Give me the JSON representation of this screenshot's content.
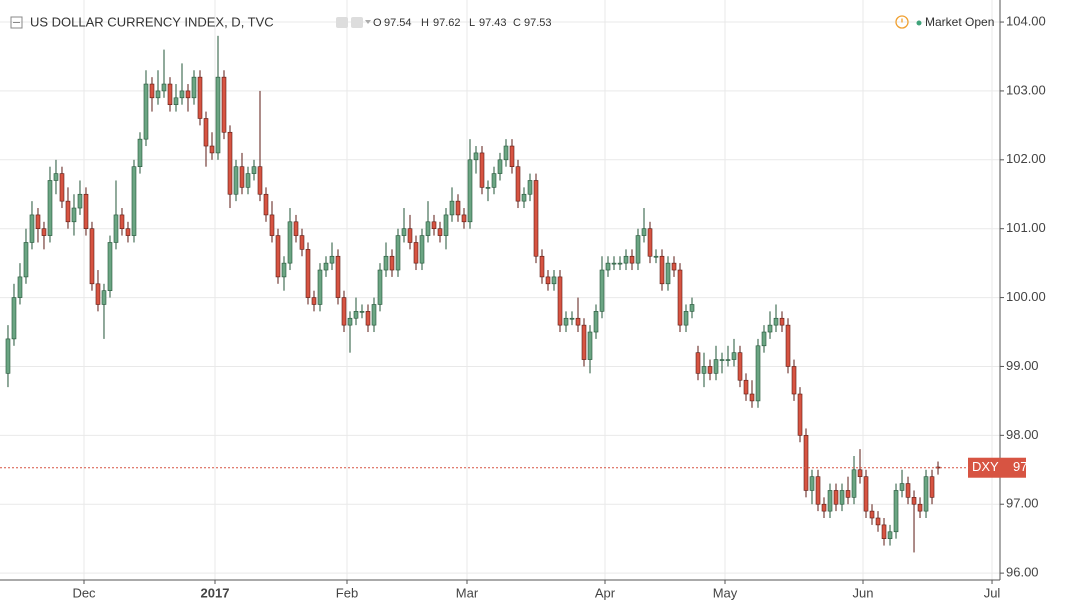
{
  "chart_data": {
    "type": "candlestick",
    "title": "US DOLLAR CURRENCY INDEX, D, TVC",
    "ohlc_labels": [
      "O",
      "H",
      "L",
      "C"
    ],
    "status": "Market Open",
    "symbol": "DXY",
    "up_color": "#6ba583",
    "down_color": "#d75442",
    "grid": true,
    "ylim": [
      95.9,
      104.32
    ],
    "yticks": [
      {
        "value": 96,
        "label": "96.00"
      },
      {
        "value": 97,
        "label": "97.00"
      },
      {
        "value": 98,
        "label": "98.00"
      },
      {
        "value": 99,
        "label": "99.00"
      },
      {
        "value": 100,
        "label": "100.00"
      },
      {
        "value": 101,
        "label": "101.00"
      },
      {
        "value": 102,
        "label": "102.00"
      },
      {
        "value": 103,
        "label": "103.00"
      },
      {
        "value": 104,
        "label": "104.00"
      }
    ],
    "xlim": [
      -1.33,
      165.33
    ],
    "xticks": [
      {
        "value": 12.67,
        "label": "Dec"
      },
      {
        "value": 34.5,
        "label": "2017"
      },
      {
        "value": 56.5,
        "label": "Feb"
      },
      {
        "value": 76.5,
        "label": "Mar"
      },
      {
        "value": 99.5,
        "label": "Apr"
      },
      {
        "value": 119.5,
        "label": "May"
      },
      {
        "value": 142.5,
        "label": "Jun"
      },
      {
        "value": 164,
        "label": "Jul"
      }
    ],
    "candles": [
      [
        98.9,
        99.6,
        98.7,
        99.4
      ],
      [
        99.4,
        100.2,
        99.3,
        100.0
      ],
      [
        100.0,
        100.5,
        99.9,
        100.3
      ],
      [
        100.3,
        101.0,
        100.2,
        100.8
      ],
      [
        100.8,
        101.4,
        100.7,
        101.2
      ],
      [
        101.2,
        101.3,
        100.8,
        101.0
      ],
      [
        101.0,
        101.1,
        100.7,
        100.9
      ],
      [
        100.9,
        101.9,
        100.8,
        101.7
      ],
      [
        101.7,
        102.0,
        101.5,
        101.8
      ],
      [
        101.8,
        101.9,
        101.3,
        101.4
      ],
      [
        101.4,
        101.6,
        101.0,
        101.1
      ],
      [
        101.1,
        101.5,
        100.9,
        101.3
      ],
      [
        101.3,
        101.7,
        101.2,
        101.5
      ],
      [
        101.5,
        101.6,
        100.9,
        101.0
      ],
      [
        101.0,
        101.1,
        100.1,
        100.2
      ],
      [
        100.2,
        100.4,
        99.8,
        99.9
      ],
      [
        99.9,
        100.2,
        99.4,
        100.1
      ],
      [
        100.1,
        100.9,
        100.0,
        100.8
      ],
      [
        100.8,
        101.7,
        100.7,
        101.2
      ],
      [
        101.2,
        101.3,
        100.9,
        101.0
      ],
      [
        101.0,
        101.1,
        100.8,
        100.9
      ],
      [
        100.9,
        102.0,
        100.8,
        101.9
      ],
      [
        101.9,
        102.4,
        101.8,
        102.3
      ],
      [
        102.3,
        103.3,
        102.2,
        103.1
      ],
      [
        103.1,
        103.2,
        102.7,
        102.9
      ],
      [
        102.9,
        103.3,
        102.8,
        103.0
      ],
      [
        103.0,
        103.6,
        102.9,
        103.1
      ],
      [
        103.1,
        103.2,
        102.7,
        102.8
      ],
      [
        102.8,
        103.1,
        102.7,
        102.9
      ],
      [
        102.9,
        103.4,
        102.8,
        103.0
      ],
      [
        103.0,
        103.1,
        102.7,
        102.9
      ],
      [
        102.9,
        103.3,
        102.8,
        103.2
      ],
      [
        103.2,
        103.3,
        102.5,
        102.6
      ],
      [
        102.6,
        102.7,
        101.9,
        102.2
      ],
      [
        102.2,
        102.4,
        102.0,
        102.1
      ],
      [
        102.1,
        103.8,
        102.0,
        103.2
      ],
      [
        103.2,
        103.3,
        102.3,
        102.4
      ],
      [
        102.4,
        102.5,
        101.3,
        101.5
      ],
      [
        101.5,
        102.0,
        101.4,
        101.9
      ],
      [
        101.9,
        102.1,
        101.5,
        101.6
      ],
      [
        101.6,
        101.9,
        101.5,
        101.8
      ],
      [
        101.8,
        102.0,
        101.7,
        101.9
      ],
      [
        101.9,
        103.0,
        101.4,
        101.5
      ],
      [
        101.5,
        101.6,
        101.1,
        101.2
      ],
      [
        101.2,
        101.4,
        100.8,
        100.9
      ],
      [
        100.9,
        101.0,
        100.2,
        100.3
      ],
      [
        100.3,
        100.6,
        100.1,
        100.5
      ],
      [
        100.5,
        101.3,
        100.4,
        101.1
      ],
      [
        101.1,
        101.2,
        100.8,
        100.9
      ],
      [
        100.9,
        101.0,
        100.6,
        100.7
      ],
      [
        100.7,
        100.8,
        99.9,
        100.0
      ],
      [
        100.0,
        100.1,
        99.8,
        99.9
      ],
      [
        99.9,
        100.5,
        99.8,
        100.4
      ],
      [
        100.4,
        100.6,
        100.3,
        100.5
      ],
      [
        100.5,
        100.8,
        100.4,
        100.6
      ],
      [
        100.6,
        100.7,
        99.9,
        100.0
      ],
      [
        100.0,
        100.1,
        99.5,
        99.6
      ],
      [
        99.6,
        99.8,
        99.2,
        99.7
      ],
      [
        99.7,
        100.0,
        99.6,
        99.8
      ],
      [
        99.8,
        99.9,
        99.7,
        99.8
      ],
      [
        99.8,
        99.9,
        99.5,
        99.6
      ],
      [
        99.6,
        100.0,
        99.5,
        99.9
      ],
      [
        99.9,
        100.5,
        99.8,
        100.4
      ],
      [
        100.4,
        100.8,
        100.3,
        100.6
      ],
      [
        100.6,
        100.7,
        100.3,
        100.4
      ],
      [
        100.4,
        101.0,
        100.3,
        100.9
      ],
      [
        100.9,
        101.3,
        100.8,
        101.0
      ],
      [
        101.0,
        101.2,
        100.7,
        100.8
      ],
      [
        100.8,
        100.9,
        100.4,
        100.5
      ],
      [
        100.5,
        101.0,
        100.4,
        100.9
      ],
      [
        100.9,
        101.4,
        100.8,
        101.1
      ],
      [
        101.1,
        101.2,
        100.9,
        101.0
      ],
      [
        101.0,
        101.1,
        100.8,
        100.9
      ],
      [
        100.9,
        101.3,
        100.7,
        101.2
      ],
      [
        101.2,
        101.6,
        101.1,
        101.4
      ],
      [
        101.4,
        101.5,
        101.1,
        101.2
      ],
      [
        101.2,
        101.3,
        101.0,
        101.1
      ],
      [
        101.1,
        102.3,
        101.0,
        102.0
      ],
      [
        102.0,
        102.2,
        101.8,
        102.1
      ],
      [
        102.1,
        102.2,
        101.5,
        101.6
      ],
      [
        101.6,
        101.7,
        101.4,
        101.6
      ],
      [
        101.6,
        101.9,
        101.5,
        101.8
      ],
      [
        101.8,
        102.1,
        101.7,
        102.0
      ],
      [
        102.0,
        102.3,
        101.9,
        102.2
      ],
      [
        102.2,
        102.3,
        101.8,
        101.9
      ],
      [
        101.9,
        102.0,
        101.3,
        101.4
      ],
      [
        101.4,
        101.6,
        101.3,
        101.5
      ],
      [
        101.5,
        101.8,
        101.4,
        101.7
      ],
      [
        101.7,
        101.8,
        100.5,
        100.6
      ],
      [
        100.6,
        100.7,
        100.2,
        100.3
      ],
      [
        100.3,
        100.4,
        100.1,
        100.2
      ],
      [
        100.2,
        100.4,
        100.1,
        100.3
      ],
      [
        100.3,
        100.4,
        99.5,
        99.6
      ],
      [
        99.6,
        99.8,
        99.5,
        99.7
      ],
      [
        99.7,
        99.8,
        99.6,
        99.7
      ],
      [
        99.7,
        100.0,
        99.5,
        99.6
      ],
      [
        99.6,
        99.7,
        99.0,
        99.1
      ],
      [
        99.1,
        99.6,
        98.9,
        99.5
      ],
      [
        99.5,
        99.9,
        99.4,
        99.8
      ],
      [
        99.8,
        100.6,
        99.7,
        100.4
      ],
      [
        100.4,
        100.6,
        100.3,
        100.5
      ],
      [
        100.5,
        100.6,
        100.4,
        100.5
      ],
      [
        100.5,
        100.6,
        100.4,
        100.5
      ],
      [
        100.5,
        100.7,
        100.4,
        100.6
      ],
      [
        100.6,
        100.7,
        100.4,
        100.5
      ],
      [
        100.5,
        101.0,
        100.4,
        100.9
      ],
      [
        100.9,
        101.3,
        100.8,
        101.0
      ],
      [
        101.0,
        101.1,
        100.5,
        100.6
      ],
      [
        100.6,
        100.7,
        100.5,
        100.6
      ],
      [
        100.6,
        100.7,
        100.1,
        100.2
      ],
      [
        100.2,
        100.6,
        100.1,
        100.5
      ],
      [
        100.5,
        100.6,
        100.3,
        100.4
      ],
      [
        100.4,
        100.5,
        99.5,
        99.6
      ],
      [
        99.6,
        99.9,
        99.5,
        99.8
      ],
      [
        99.8,
        100.0,
        99.7,
        99.9
      ],
      [
        99.2,
        99.3,
        98.8,
        98.9
      ],
      [
        98.9,
        99.2,
        98.7,
        99.0
      ],
      [
        99.0,
        99.1,
        98.8,
        98.9
      ],
      [
        98.9,
        99.3,
        98.8,
        99.1
      ],
      [
        99.1,
        99.2,
        98.9,
        99.1
      ],
      [
        99.1,
        99.3,
        99.0,
        99.1
      ],
      [
        99.1,
        99.4,
        99.0,
        99.2
      ],
      [
        99.2,
        99.3,
        98.7,
        98.8
      ],
      [
        98.8,
        98.9,
        98.5,
        98.6
      ],
      [
        98.6,
        98.8,
        98.4,
        98.5
      ],
      [
        98.5,
        99.4,
        98.4,
        99.3
      ],
      [
        99.3,
        99.6,
        99.2,
        99.5
      ],
      [
        99.5,
        99.8,
        99.4,
        99.6
      ],
      [
        99.6,
        99.9,
        99.5,
        99.7
      ],
      [
        99.7,
        99.8,
        99.5,
        99.6
      ],
      [
        99.6,
        99.7,
        98.9,
        99.0
      ],
      [
        99.0,
        99.1,
        98.5,
        98.6
      ],
      [
        98.6,
        98.7,
        97.9,
        98.0
      ],
      [
        98.0,
        98.1,
        97.1,
        97.2
      ],
      [
        97.2,
        97.5,
        97.0,
        97.4
      ],
      [
        97.4,
        97.5,
        96.9,
        97.0
      ],
      [
        97.0,
        97.1,
        96.8,
        96.9
      ],
      [
        96.9,
        97.3,
        96.8,
        97.2
      ],
      [
        97.2,
        97.3,
        96.9,
        97.0
      ],
      [
        97.0,
        97.3,
        96.9,
        97.2
      ],
      [
        97.2,
        97.4,
        97.0,
        97.1
      ],
      [
        97.1,
        97.7,
        97.0,
        97.5
      ],
      [
        97.5,
        97.8,
        97.3,
        97.4
      ],
      [
        97.4,
        97.5,
        96.8,
        96.9
      ],
      [
        96.9,
        97.0,
        96.7,
        96.8
      ],
      [
        96.8,
        96.9,
        96.6,
        96.7
      ],
      [
        96.7,
        96.8,
        96.4,
        96.5
      ],
      [
        96.5,
        96.7,
        96.4,
        96.6
      ],
      [
        96.6,
        97.3,
        96.5,
        97.2
      ],
      [
        97.2,
        97.5,
        97.1,
        97.3
      ],
      [
        97.3,
        97.4,
        97.0,
        97.1
      ],
      [
        97.1,
        97.2,
        96.3,
        97.0
      ],
      [
        97.0,
        97.1,
        96.8,
        96.9
      ],
      [
        96.9,
        97.5,
        96.8,
        97.4
      ],
      [
        97.4,
        97.5,
        97.0,
        97.1
      ],
      [
        97.54,
        97.62,
        97.43,
        97.53
      ]
    ]
  }
}
